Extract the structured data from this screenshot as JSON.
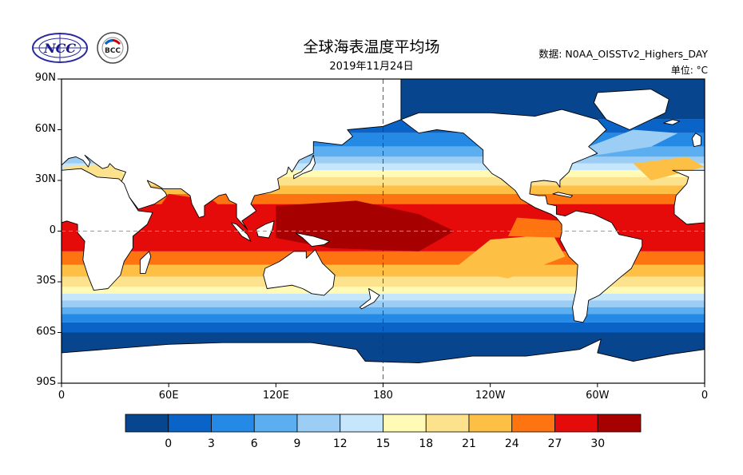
{
  "header": {
    "title": "全球海表温度平均场",
    "date": "2019年11月24日",
    "source": "数据: N0AA_OISSTv2_Highers_DAY",
    "unit": "单位: °C"
  },
  "logos": {
    "left_text": "NCC",
    "right_text": "BCC"
  },
  "map": {
    "lat_labels": [
      "90N",
      "60N",
      "30N",
      "0",
      "30S",
      "60S",
      "90S"
    ],
    "lon_labels": [
      "0",
      "60E",
      "120E",
      "180",
      "120W",
      "60W",
      "0"
    ],
    "colors": {
      "land": "#ffffff",
      "coast": "#000000",
      "grid": "#9a9a9a"
    }
  },
  "colorbar": {
    "colors": [
      "#07468f",
      "#0a63c7",
      "#2589e6",
      "#5baff0",
      "#9bcdf5",
      "#c6e7fb",
      "#fffbb6",
      "#fde28e",
      "#fdc045",
      "#fe7410",
      "#e60b0b",
      "#a70000"
    ],
    "labels": [
      "0",
      "3",
      "6",
      "9",
      "12",
      "15",
      "18",
      "21",
      "24",
      "27",
      "30"
    ]
  }
}
